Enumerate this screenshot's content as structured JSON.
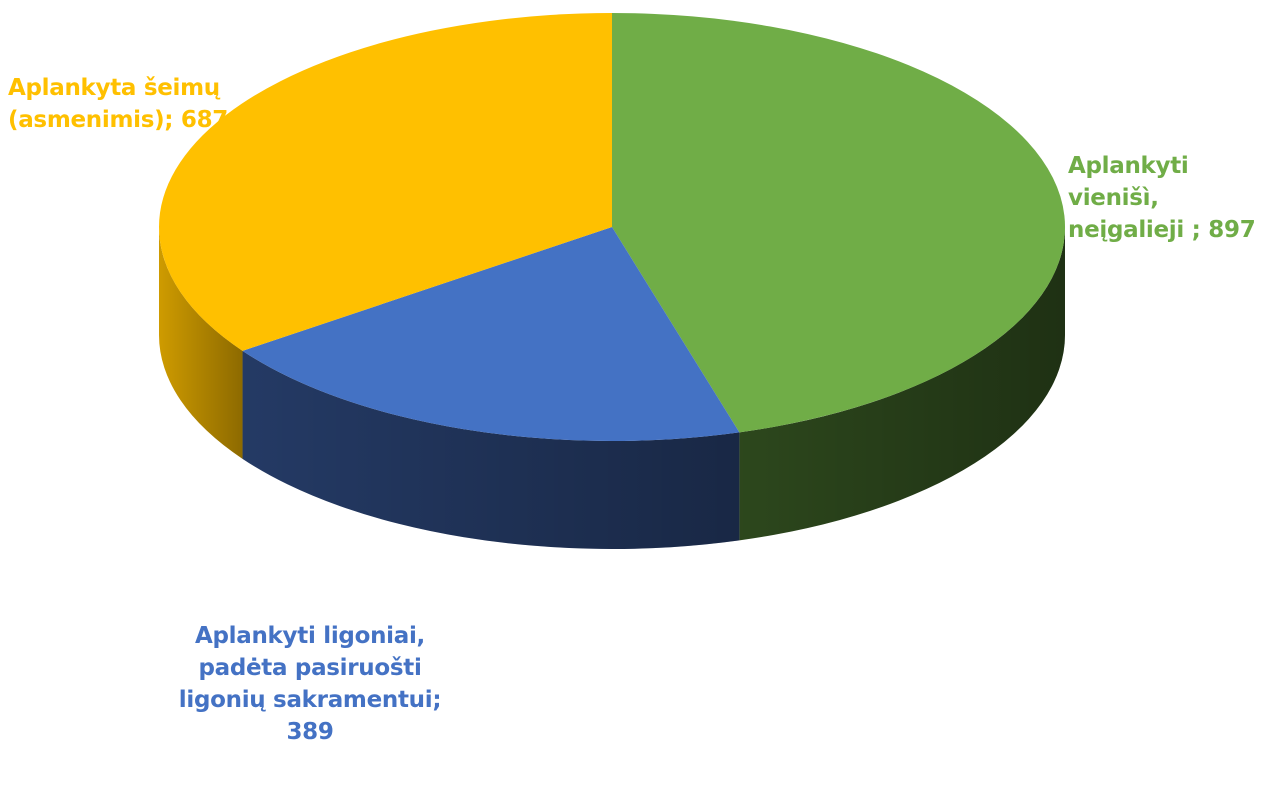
{
  "chart_data": {
    "type": "pie",
    "style": "3d",
    "slices": [
      {
        "label_lines": [
          "Aplankyti vienišì,",
          "neįgalieji ; 897"
        ],
        "value": 897,
        "color": "#70ad47",
        "side_color": "#2f4b1e"
      },
      {
        "label_lines": [
          "Aplankyti ligoniai,",
          "padėta pasiruošti",
          "ligonių sakramentui;",
          "389"
        ],
        "value": 389,
        "color": "#4472c4",
        "side_color": "#263d6a"
      },
      {
        "label_lines": [
          "Aplankyta šeimų",
          "(asmenimis); 687"
        ],
        "value": 687,
        "color": "#ffc000",
        "side_color": "#d9a300"
      }
    ]
  }
}
